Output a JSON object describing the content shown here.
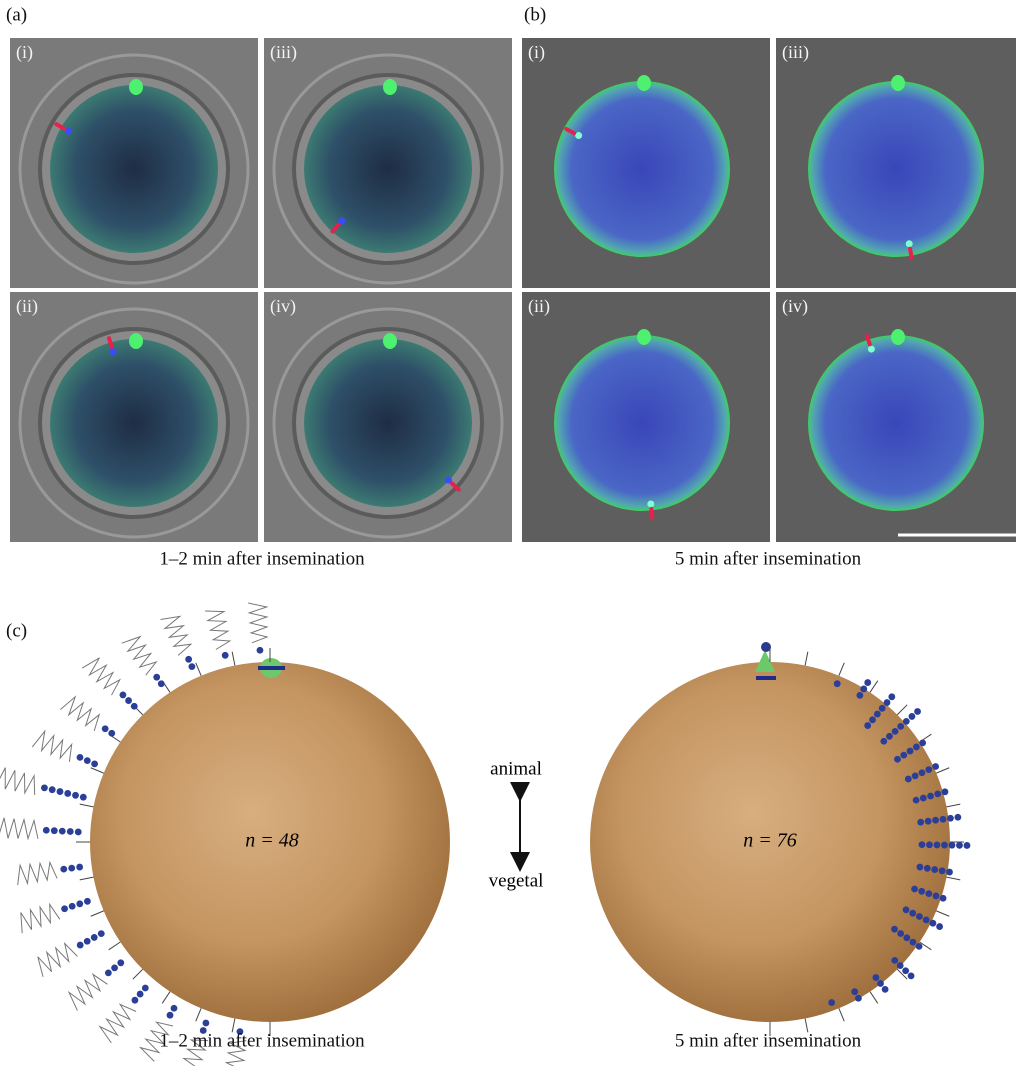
{
  "panel_a": {
    "label": "(a)",
    "images": [
      {
        "label": "(i)"
      },
      {
        "label": "(iii)"
      },
      {
        "label": "(ii)"
      },
      {
        "label": "(iv)"
      }
    ],
    "caption": "1–2 min after insemination"
  },
  "panel_b": {
    "label": "(b)",
    "images": [
      {
        "label": "(i)"
      },
      {
        "label": "(iii)"
      },
      {
        "label": "(ii)"
      },
      {
        "label": "(iv)"
      }
    ],
    "caption": "5 min after insemination"
  },
  "panel_c": {
    "label": "(c)",
    "left": {
      "n": "n = 48",
      "caption": "1–2 min after insemination"
    },
    "right": {
      "n": "n = 76",
      "caption": "5 min after insemination"
    },
    "axis": {
      "top": "animal",
      "bottom": "vegetal"
    }
  }
}
